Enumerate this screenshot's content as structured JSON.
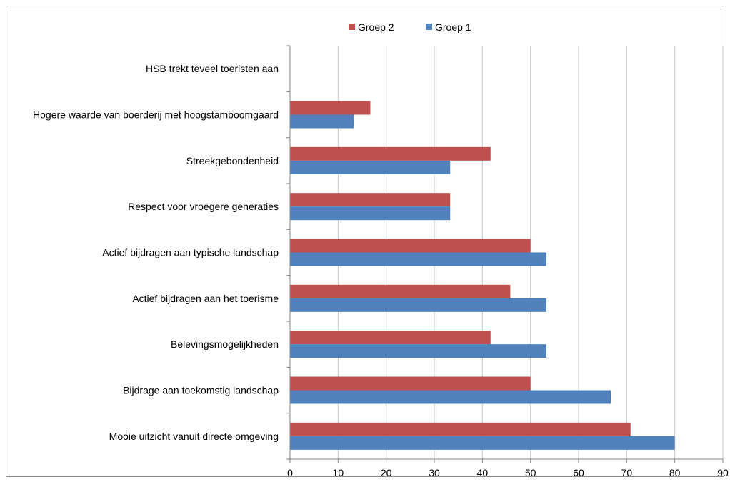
{
  "chart_data": {
    "type": "bar",
    "orientation": "horizontal",
    "title": "",
    "xlabel": "",
    "ylabel": "",
    "xlim": [
      0,
      90
    ],
    "x_ticks": [
      "0",
      "10",
      "20",
      "30",
      "40",
      "50",
      "60",
      "70",
      "80",
      "90"
    ],
    "grid": "vertical",
    "legend_position": "top",
    "categories": [
      "HSB trekt teveel toeristen aan",
      "Hogere waarde van boerderij met hoogstamboomgaard",
      "Streekgebondenheid",
      "Respect voor vroegere generaties",
      "Actief bijdragen aan typische landschap",
      "Actief bijdragen aan het toerisme",
      "Belevingsmogelijkheden",
      "Bijdrage aan  toekomstig landschap",
      "Mooie uitzicht vanuit directe omgeving"
    ],
    "series": [
      {
        "name": "Groep 2",
        "color": "#c0504d",
        "values": [
          0,
          16.7,
          41.7,
          33.3,
          50.0,
          45.8,
          41.7,
          50.0,
          70.8
        ]
      },
      {
        "name": "Groep 1",
        "color": "#4f81bd",
        "values": [
          0,
          13.3,
          33.3,
          33.3,
          53.3,
          53.3,
          53.3,
          66.7,
          80.0
        ]
      }
    ]
  }
}
